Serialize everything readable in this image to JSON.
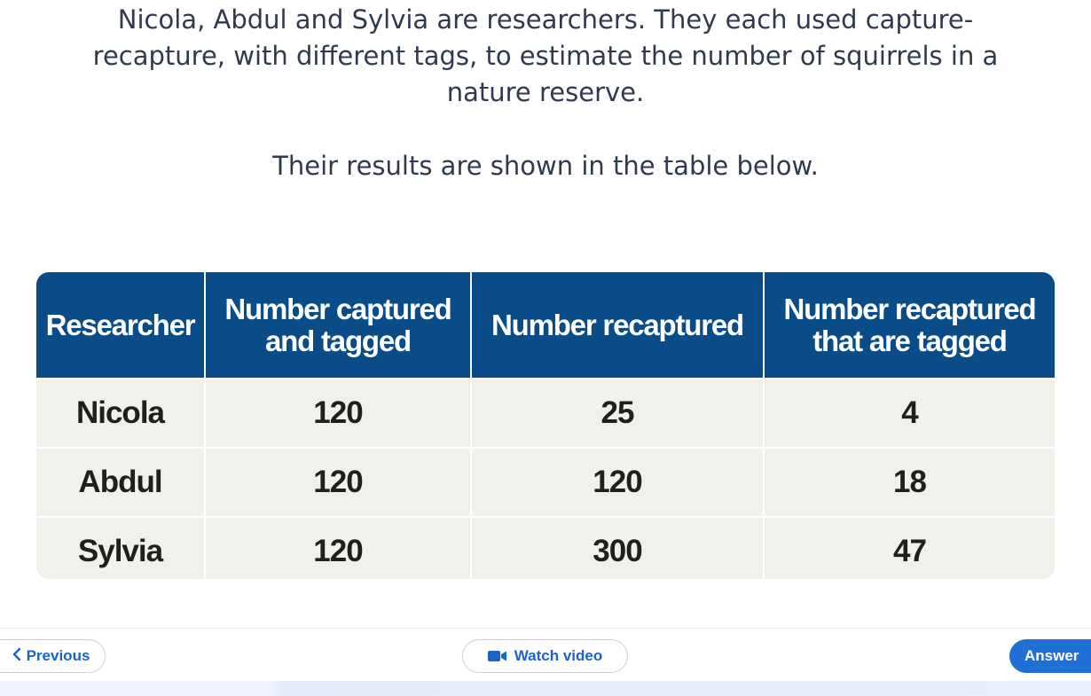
{
  "question": {
    "text": "Nicola, Abdul and Sylvia are researchers. They each used capture-recapture, with different tags, to estimate the number of squirrels in a nature reserve.",
    "line1": "Nicola, Abdul and Sylvia are researchers. They each used capture-",
    "line2": "recapture, with different tags, to estimate the number of squirrels in a",
    "line3": "nature reserve.",
    "sub": "Their results are shown in the table below."
  },
  "table": {
    "headers": [
      "Researcher",
      "Number captured and tagged",
      "Number recaptured",
      "Number recaptured that are tagged"
    ],
    "header_lines": [
      [
        "Researcher"
      ],
      [
        "Number captured",
        "and tagged"
      ],
      [
        "Number recaptured"
      ],
      [
        "Number recaptured",
        "that are tagged"
      ]
    ],
    "rows": [
      [
        "Nicola",
        "120",
        "25",
        "4"
      ],
      [
        "Abdul",
        "120",
        "120",
        "18"
      ],
      [
        "Sylvia",
        "120",
        "300",
        "47"
      ]
    ]
  },
  "footer": {
    "previous_label": "Previous",
    "video_label": "Watch video",
    "answer_label": "Answer"
  },
  "colors": {
    "header_bg": "#0a4c87",
    "row_bg": "#f2f0eb",
    "accent": "#1f6fd6",
    "text": "#2f3a4f"
  },
  "icons": {
    "previous": "chevron-left-icon",
    "video": "video-camera-icon"
  }
}
